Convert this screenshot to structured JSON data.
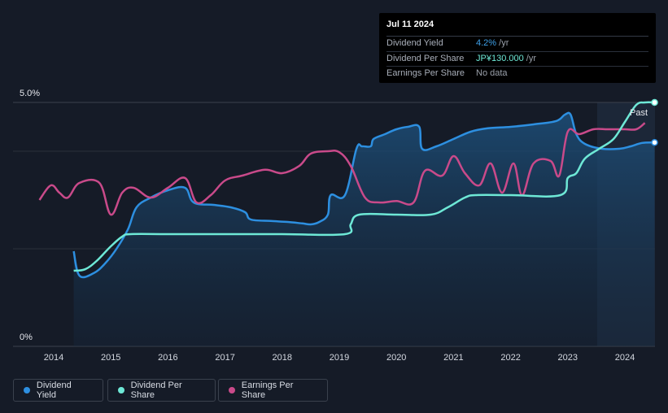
{
  "tooltip": {
    "date": "Jul 11 2024",
    "rows": [
      {
        "label": "Dividend Yield",
        "value": "4.2%",
        "unit": " /yr"
      },
      {
        "label": "Dividend Per Share",
        "value": "JP¥130.000",
        "unit": " /yr"
      },
      {
        "label": "Earnings Per Share",
        "value": "No data",
        "unit": ""
      }
    ]
  },
  "y_axis": {
    "top_label": "5.0%",
    "bottom_label": "0%"
  },
  "past_label": "Past",
  "legend": [
    {
      "label": "Dividend Yield",
      "color": "#2d8fe0"
    },
    {
      "label": "Dividend Per Share",
      "color": "#6ee8d6"
    },
    {
      "label": "Earnings Per Share",
      "color": "#c94a8a"
    }
  ],
  "chart_data": {
    "type": "line",
    "x_ticks": [
      "2014",
      "2015",
      "2016",
      "2017",
      "2018",
      "2019",
      "2020",
      "2021",
      "2022",
      "2023",
      "2024"
    ],
    "ylim": [
      0,
      5.0
    ],
    "y_unit": "%",
    "series": [
      {
        "name": "Dividend Yield",
        "color": "#2d8fe0",
        "area": true,
        "points": [
          [
            2014.35,
            1.95
          ],
          [
            2014.45,
            1.45
          ],
          [
            2014.7,
            1.5
          ],
          [
            2014.9,
            1.7
          ],
          [
            2015.1,
            2.0
          ],
          [
            2015.3,
            2.4
          ],
          [
            2015.45,
            2.85
          ],
          [
            2015.7,
            3.05
          ],
          [
            2016.0,
            3.2
          ],
          [
            2016.3,
            3.25
          ],
          [
            2016.45,
            2.95
          ],
          [
            2016.8,
            2.9
          ],
          [
            2017.1,
            2.85
          ],
          [
            2017.35,
            2.75
          ],
          [
            2017.45,
            2.6
          ],
          [
            2017.8,
            2.57
          ],
          [
            2018.1,
            2.55
          ],
          [
            2018.35,
            2.52
          ],
          [
            2018.5,
            2.5
          ],
          [
            2018.65,
            2.55
          ],
          [
            2018.8,
            2.7
          ],
          [
            2018.85,
            3.1
          ],
          [
            2019.1,
            3.1
          ],
          [
            2019.3,
            4.05
          ],
          [
            2019.4,
            4.1
          ],
          [
            2019.55,
            4.1
          ],
          [
            2019.6,
            4.25
          ],
          [
            2019.8,
            4.35
          ],
          [
            2020.0,
            4.45
          ],
          [
            2020.2,
            4.5
          ],
          [
            2020.4,
            4.5
          ],
          [
            2020.45,
            4.05
          ],
          [
            2020.7,
            4.1
          ],
          [
            2021.0,
            4.25
          ],
          [
            2021.3,
            4.4
          ],
          [
            2021.6,
            4.47
          ],
          [
            2022.0,
            4.5
          ],
          [
            2022.4,
            4.55
          ],
          [
            2022.8,
            4.62
          ],
          [
            2022.95,
            4.75
          ],
          [
            2023.05,
            4.75
          ],
          [
            2023.15,
            4.35
          ],
          [
            2023.3,
            4.15
          ],
          [
            2023.6,
            4.05
          ],
          [
            2023.9,
            4.05
          ],
          [
            2024.1,
            4.1
          ],
          [
            2024.3,
            4.17
          ],
          [
            2024.52,
            4.18
          ]
        ]
      },
      {
        "name": "Dividend Per Share",
        "color": "#6ee8d6",
        "area": false,
        "points": [
          [
            2014.35,
            1.55
          ],
          [
            2014.55,
            1.58
          ],
          [
            2014.75,
            1.75
          ],
          [
            2015.0,
            2.05
          ],
          [
            2015.2,
            2.25
          ],
          [
            2015.35,
            2.3
          ],
          [
            2016.0,
            2.3
          ],
          [
            2017.0,
            2.3
          ],
          [
            2018.0,
            2.3
          ],
          [
            2019.1,
            2.3
          ],
          [
            2019.2,
            2.5
          ],
          [
            2019.35,
            2.7
          ],
          [
            2020.0,
            2.7
          ],
          [
            2020.6,
            2.7
          ],
          [
            2020.9,
            2.85
          ],
          [
            2021.2,
            3.05
          ],
          [
            2021.4,
            3.1
          ],
          [
            2022.0,
            3.1
          ],
          [
            2022.87,
            3.1
          ],
          [
            2023.0,
            3.45
          ],
          [
            2023.15,
            3.55
          ],
          [
            2023.3,
            3.85
          ],
          [
            2023.55,
            4.05
          ],
          [
            2023.8,
            4.25
          ],
          [
            2024.0,
            4.6
          ],
          [
            2024.2,
            4.95
          ],
          [
            2024.35,
            5.0
          ],
          [
            2024.52,
            5.0
          ]
        ]
      },
      {
        "name": "Earnings Per Share",
        "color": "#c94a8a",
        "area": false,
        "points": [
          [
            2013.75,
            3.0
          ],
          [
            2013.95,
            3.3
          ],
          [
            2014.1,
            3.15
          ],
          [
            2014.25,
            3.05
          ],
          [
            2014.45,
            3.35
          ],
          [
            2014.8,
            3.35
          ],
          [
            2015.0,
            2.7
          ],
          [
            2015.2,
            3.15
          ],
          [
            2015.4,
            3.25
          ],
          [
            2015.7,
            3.05
          ],
          [
            2016.0,
            3.25
          ],
          [
            2016.3,
            3.45
          ],
          [
            2016.5,
            2.95
          ],
          [
            2016.75,
            3.1
          ],
          [
            2017.0,
            3.4
          ],
          [
            2017.3,
            3.5
          ],
          [
            2017.7,
            3.62
          ],
          [
            2018.0,
            3.55
          ],
          [
            2018.3,
            3.7
          ],
          [
            2018.5,
            3.95
          ],
          [
            2018.8,
            4.0
          ],
          [
            2019.0,
            3.98
          ],
          [
            2019.2,
            3.7
          ],
          [
            2019.45,
            3.05
          ],
          [
            2019.7,
            2.95
          ],
          [
            2020.0,
            2.98
          ],
          [
            2020.3,
            2.95
          ],
          [
            2020.5,
            3.6
          ],
          [
            2020.8,
            3.5
          ],
          [
            2021.0,
            3.9
          ],
          [
            2021.2,
            3.55
          ],
          [
            2021.45,
            3.3
          ],
          [
            2021.65,
            3.75
          ],
          [
            2021.85,
            3.15
          ],
          [
            2022.05,
            3.75
          ],
          [
            2022.2,
            3.1
          ],
          [
            2022.4,
            3.75
          ],
          [
            2022.7,
            3.8
          ],
          [
            2022.85,
            3.5
          ],
          [
            2023.0,
            4.4
          ],
          [
            2023.2,
            4.35
          ],
          [
            2023.45,
            4.45
          ],
          [
            2023.7,
            4.45
          ],
          [
            2024.0,
            4.45
          ],
          [
            2024.2,
            4.45
          ],
          [
            2024.35,
            4.58
          ]
        ]
      }
    ]
  }
}
